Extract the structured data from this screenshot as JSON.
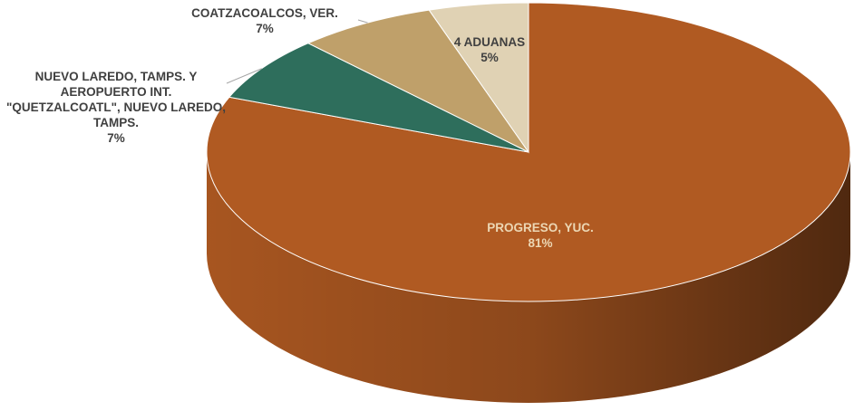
{
  "chart_data": {
    "type": "pie3d",
    "categories": [
      "PROGRESO, YUC.",
      "NUEVO LAREDO, TAMPS. Y AEROPUERTO INT. \"QUETZALCOATL\", NUEVO LAREDO, TAMPS.",
      "COATZACOALCOS, VER.",
      "4 ADUANAS"
    ],
    "values": [
      81,
      7,
      7,
      5
    ],
    "value_labels": [
      "81%",
      "7%",
      "7%",
      "5%"
    ],
    "colors": [
      "#b05a22",
      "#2e6e5c",
      "#bfa06a",
      "#e0d2b4"
    ]
  }
}
